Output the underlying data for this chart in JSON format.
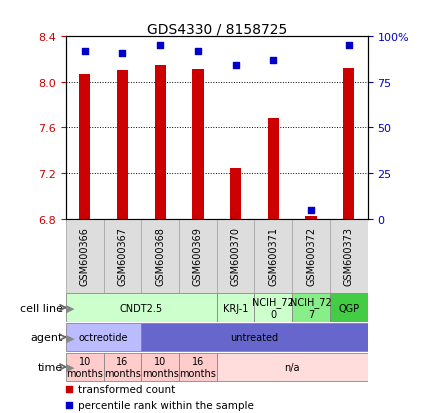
{
  "title": "GDS4330 / 8158725",
  "samples": [
    "GSM600366",
    "GSM600367",
    "GSM600368",
    "GSM600369",
    "GSM600370",
    "GSM600371",
    "GSM600372",
    "GSM600373"
  ],
  "transformed_count": [
    8.07,
    8.1,
    8.15,
    8.11,
    7.24,
    7.68,
    6.82,
    8.12
  ],
  "percentile_rank": [
    92,
    91,
    95,
    92,
    84,
    87,
    5,
    95
  ],
  "ylim_left": [
    6.8,
    8.4
  ],
  "yticks_left": [
    6.8,
    7.2,
    7.6,
    8.0,
    8.4
  ],
  "ylim_right": [
    0,
    100
  ],
  "yticks_right": [
    0,
    25,
    50,
    75,
    100
  ],
  "ytick_labels_right": [
    "0",
    "25",
    "50",
    "75",
    "100%"
  ],
  "bar_color": "#CC0000",
  "dot_color": "#0000CC",
  "tick_color_left": "#CC0000",
  "tick_color_right": "#0000CC",
  "grid_ticks": [
    8.0,
    7.6,
    7.2
  ],
  "cell_line_groups": [
    {
      "label": "CNDT2.5",
      "start": 0,
      "end": 4,
      "color": "#ccffcc"
    },
    {
      "label": "KRJ-1",
      "start": 4,
      "end": 5,
      "color": "#ccffcc"
    },
    {
      "label": "NCIH_72\n0",
      "start": 5,
      "end": 6,
      "color": "#ccffcc"
    },
    {
      "label": "NCIH_72\n7",
      "start": 6,
      "end": 7,
      "color": "#88ee88"
    },
    {
      "label": "QGP",
      "start": 7,
      "end": 8,
      "color": "#44cc44"
    }
  ],
  "agent_groups": [
    {
      "label": "octreotide",
      "start": 0,
      "end": 2,
      "color": "#bbbbff"
    },
    {
      "label": "untreated",
      "start": 2,
      "end": 8,
      "color": "#6666cc"
    }
  ],
  "time_groups": [
    {
      "label": "10\nmonths",
      "start": 0,
      "end": 1,
      "color": "#ffcccc"
    },
    {
      "label": "16\nmonths",
      "start": 1,
      "end": 2,
      "color": "#ffcccc"
    },
    {
      "label": "10\nmonths",
      "start": 2,
      "end": 3,
      "color": "#ffcccc"
    },
    {
      "label": "16\nmonths",
      "start": 3,
      "end": 4,
      "color": "#ffcccc"
    },
    {
      "label": "n/a",
      "start": 4,
      "end": 8,
      "color": "#ffdddd"
    }
  ],
  "row_labels": [
    "cell line",
    "agent",
    "time"
  ],
  "legend_red_label": "transformed count",
  "legend_blue_label": "percentile rank within the sample",
  "bar_bottom": 6.8,
  "bar_width": 0.3,
  "dot_size": 20
}
